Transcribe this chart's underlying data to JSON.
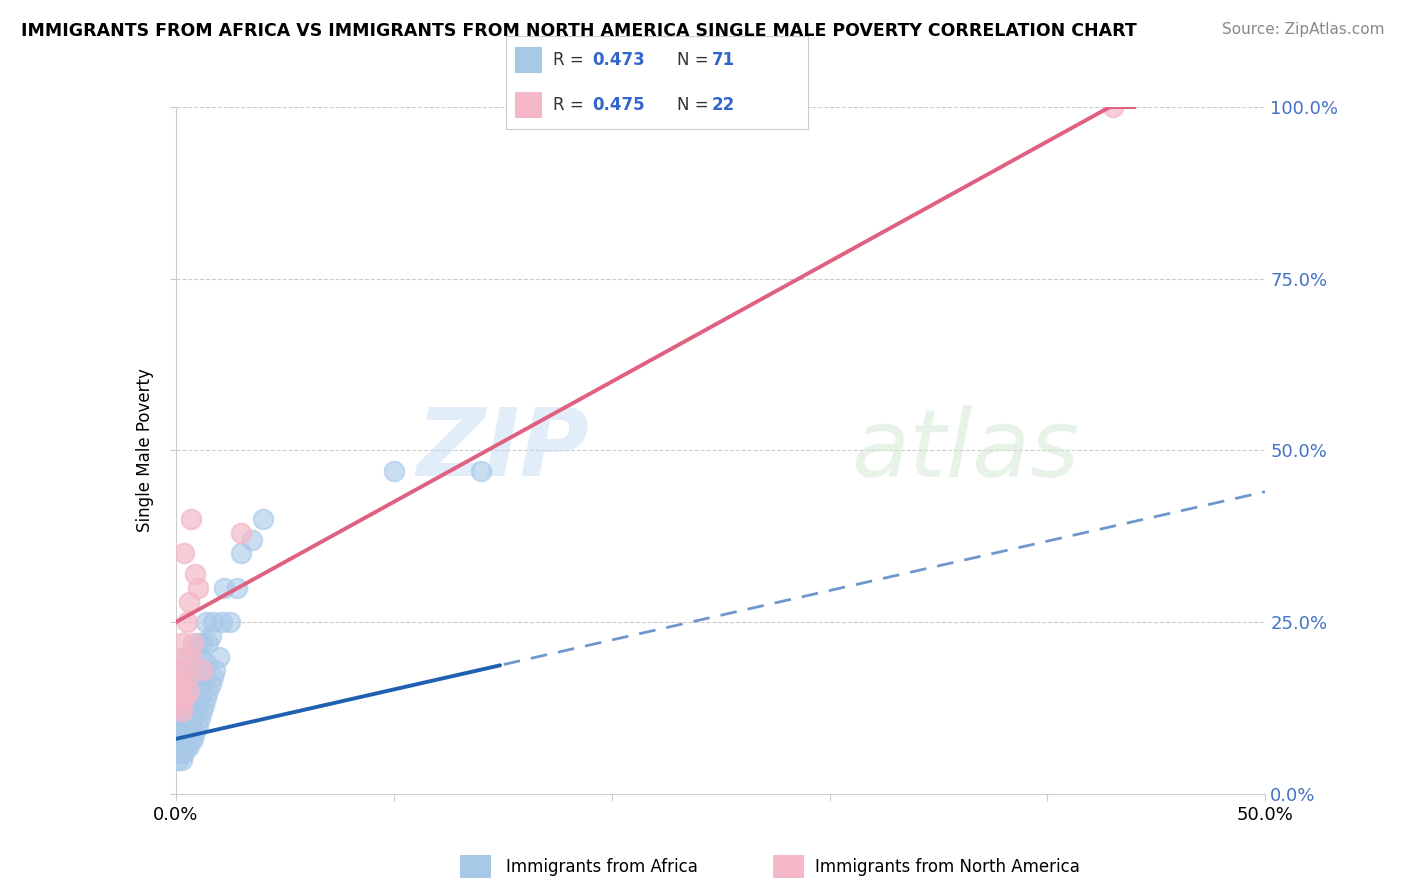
{
  "title": "IMMIGRANTS FROM AFRICA VS IMMIGRANTS FROM NORTH AMERICA SINGLE MALE POVERTY CORRELATION CHART",
  "source": "Source: ZipAtlas.com",
  "ylabel": "Single Male Poverty",
  "y_ticks_labels": [
    "0.0%",
    "25.0%",
    "50.0%",
    "75.0%",
    "100.0%"
  ],
  "y_tick_vals": [
    0.0,
    0.25,
    0.5,
    0.75,
    1.0
  ],
  "x_ticks_labels": [
    "0.0%",
    "",
    "",
    "",
    "",
    "50.0%"
  ],
  "x_tick_vals": [
    0.0,
    0.1,
    0.2,
    0.3,
    0.4,
    0.5
  ],
  "legend1_R": "0.473",
  "legend1_N": "71",
  "legend2_R": "0.475",
  "legend2_N": "22",
  "blue_color": "#a8c8e8",
  "pink_color": "#f4b8c8",
  "blue_line_color": "#2060b0",
  "pink_line_color": "#e06080",
  "blue_label": "Immigrants from Africa",
  "pink_label": "Immigrants from North America",
  "background_color": "#ffffff",
  "watermark_zip": "ZIP",
  "watermark_atlas": "atlas",
  "africa_x": [
    0.001,
    0.001,
    0.001,
    0.001,
    0.002,
    0.002,
    0.002,
    0.002,
    0.002,
    0.003,
    0.003,
    0.003,
    0.003,
    0.003,
    0.003,
    0.004,
    0.004,
    0.004,
    0.004,
    0.004,
    0.005,
    0.005,
    0.005,
    0.005,
    0.005,
    0.006,
    0.006,
    0.006,
    0.006,
    0.007,
    0.007,
    0.007,
    0.007,
    0.008,
    0.008,
    0.008,
    0.009,
    0.009,
    0.009,
    0.01,
    0.01,
    0.01,
    0.01,
    0.011,
    0.011,
    0.011,
    0.012,
    0.012,
    0.012,
    0.013,
    0.013,
    0.014,
    0.014,
    0.014,
    0.015,
    0.015,
    0.016,
    0.016,
    0.017,
    0.017,
    0.018,
    0.02,
    0.021,
    0.022,
    0.025,
    0.028,
    0.03,
    0.035,
    0.04,
    0.1,
    0.14
  ],
  "africa_y": [
    0.05,
    0.08,
    0.1,
    0.12,
    0.06,
    0.08,
    0.1,
    0.12,
    0.15,
    0.05,
    0.07,
    0.09,
    0.11,
    0.14,
    0.18,
    0.06,
    0.08,
    0.1,
    0.13,
    0.17,
    0.07,
    0.09,
    0.11,
    0.14,
    0.2,
    0.07,
    0.09,
    0.12,
    0.16,
    0.08,
    0.1,
    0.13,
    0.18,
    0.08,
    0.11,
    0.15,
    0.09,
    0.12,
    0.17,
    0.1,
    0.13,
    0.17,
    0.22,
    0.11,
    0.14,
    0.2,
    0.12,
    0.16,
    0.22,
    0.13,
    0.18,
    0.14,
    0.19,
    0.25,
    0.15,
    0.22,
    0.16,
    0.23,
    0.17,
    0.25,
    0.18,
    0.2,
    0.25,
    0.3,
    0.25,
    0.3,
    0.35,
    0.37,
    0.4,
    0.47,
    0.47
  ],
  "namerica_x": [
    0.001,
    0.001,
    0.002,
    0.002,
    0.003,
    0.003,
    0.003,
    0.004,
    0.004,
    0.004,
    0.005,
    0.005,
    0.006,
    0.006,
    0.007,
    0.007,
    0.008,
    0.009,
    0.01,
    0.012,
    0.03,
    0.43
  ],
  "namerica_y": [
    0.14,
    0.18,
    0.13,
    0.17,
    0.12,
    0.16,
    0.22,
    0.14,
    0.2,
    0.35,
    0.17,
    0.25,
    0.15,
    0.28,
    0.2,
    0.4,
    0.22,
    0.32,
    0.3,
    0.18,
    0.38,
    1.0
  ],
  "xlim": [
    0.0,
    0.5
  ],
  "ylim": [
    0.0,
    1.0
  ],
  "blue_trend_intercept": 0.08,
  "blue_trend_slope": 0.72,
  "pink_trend_intercept": 0.25,
  "pink_trend_slope": 1.75
}
